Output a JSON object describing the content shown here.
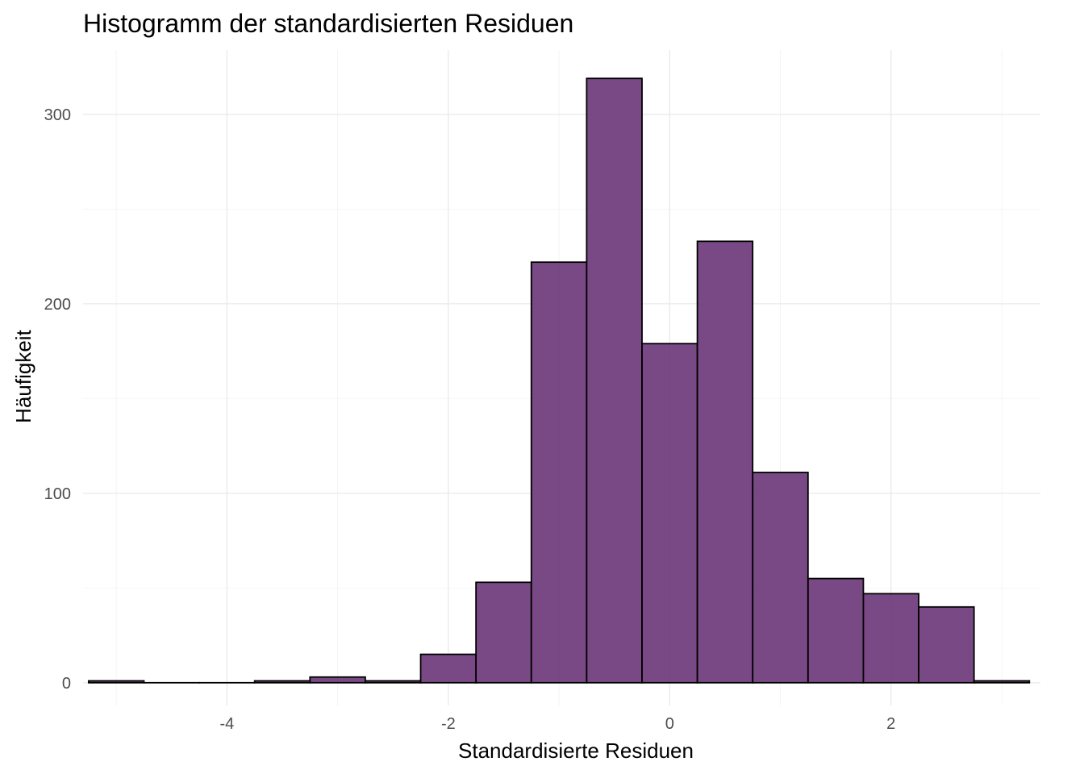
{
  "chart_data": {
    "type": "bar",
    "title": "Histogramm der standardisierten Residuen",
    "xlabel": "Standardisierte Residuen",
    "ylabel": "Häufigkeit",
    "xlim": [
      -5.3,
      3.35
    ],
    "ylim": [
      -12,
      334
    ],
    "x_ticks": [
      -4,
      -2,
      0,
      2
    ],
    "x_tick_labels": [
      "-4",
      "-2",
      "0",
      "2"
    ],
    "y_ticks": [
      0,
      100,
      200,
      300
    ],
    "y_tick_labels": [
      "0",
      "100",
      "200",
      "300"
    ],
    "grid": true,
    "legend": "none",
    "bin_width": 0.5,
    "bins": [
      {
        "x_start": -5.25,
        "x_end": -4.75,
        "count": 1
      },
      {
        "x_start": -4.75,
        "x_end": -4.25,
        "count": 0
      },
      {
        "x_start": -4.25,
        "x_end": -3.75,
        "count": 0
      },
      {
        "x_start": -3.75,
        "x_end": -3.25,
        "count": 1
      },
      {
        "x_start": -3.25,
        "x_end": -2.75,
        "count": 3
      },
      {
        "x_start": -2.75,
        "x_end": -2.25,
        "count": 1
      },
      {
        "x_start": -2.25,
        "x_end": -1.75,
        "count": 15
      },
      {
        "x_start": -1.75,
        "x_end": -1.25,
        "count": 53
      },
      {
        "x_start": -1.25,
        "x_end": -0.75,
        "count": 222
      },
      {
        "x_start": -0.75,
        "x_end": -0.25,
        "count": 319
      },
      {
        "x_start": -0.25,
        "x_end": 0.25,
        "count": 179
      },
      {
        "x_start": 0.25,
        "x_end": 0.75,
        "count": 233
      },
      {
        "x_start": 0.75,
        "x_end": 1.25,
        "count": 111
      },
      {
        "x_start": 1.25,
        "x_end": 1.75,
        "count": 55
      },
      {
        "x_start": 1.75,
        "x_end": 2.25,
        "count": 47
      },
      {
        "x_start": 2.25,
        "x_end": 2.75,
        "count": 40
      },
      {
        "x_start": 2.75,
        "x_end": 3.25,
        "count": 1
      }
    ],
    "colors": {
      "bar_fill": "#6a3578",
      "bar_outline": "#000000",
      "grid_major": "#ebebeb",
      "grid_minor": "#f4f4f4",
      "tick_text": "#4d4d4d"
    }
  }
}
